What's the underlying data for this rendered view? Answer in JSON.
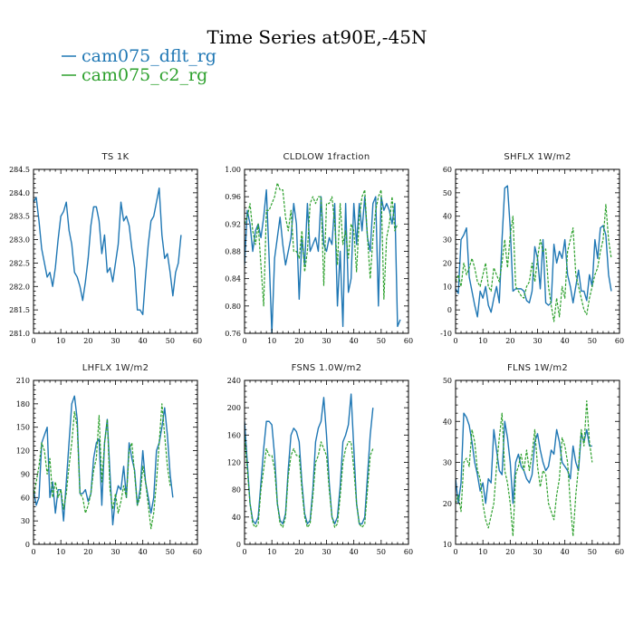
{
  "title": "Time Series at90E,-45N",
  "legend": [
    {
      "label": "cam075_dflt_rg",
      "color": "#1f77b4"
    },
    {
      "label": "cam075_c2_rg",
      "color": "#2ca02c"
    }
  ],
  "chart_data": [
    {
      "type": "line",
      "title": "TS   1K",
      "xlim": [
        0,
        60
      ],
      "ylim": [
        281.0,
        284.5
      ],
      "xticks": [
        0,
        10,
        20,
        30,
        40,
        50,
        60
      ],
      "yticks": [
        281.0,
        281.5,
        282.0,
        282.5,
        283.0,
        283.5,
        284.0,
        284.5
      ],
      "ytick_labels": [
        "281.0",
        "281.5",
        "282.0",
        "282.5",
        "283.0",
        "283.5",
        "284.0",
        "284.5"
      ],
      "series": [
        {
          "name": "cam075_dflt_rg",
          "color": "#1f77b4",
          "dashed": false,
          "values": [
            283.8,
            283.9,
            283.4,
            282.8,
            282.5,
            282.2,
            282.3,
            282.0,
            282.4,
            283.0,
            283.5,
            283.6,
            283.8,
            283.2,
            282.9,
            282.3,
            282.2,
            282.0,
            281.7,
            282.1,
            282.6,
            283.3,
            283.7,
            283.7,
            283.4,
            282.7,
            283.1,
            282.3,
            282.4,
            282.1,
            282.5,
            282.9,
            283.8,
            283.4,
            283.5,
            283.3,
            282.8,
            282.4,
            281.5,
            281.5,
            281.4,
            282.2,
            282.9,
            283.4,
            283.5,
            283.8,
            284.1,
            283.1,
            282.6,
            282.7,
            282.3,
            281.8,
            282.3,
            282.5,
            283.1
          ]
        }
      ]
    },
    {
      "type": "line",
      "title": "CLDLOW   1fraction",
      "xlim": [
        0,
        60
      ],
      "ylim": [
        0.76,
        1.0
      ],
      "xticks": [
        0,
        10,
        20,
        30,
        40,
        50,
        60
      ],
      "yticks": [
        0.76,
        0.8,
        0.84,
        0.88,
        0.92,
        0.96,
        1.0
      ],
      "ytick_labels": [
        "0.76",
        "0.80",
        "0.84",
        "0.88",
        "0.92",
        "0.96",
        "1.00"
      ],
      "series": [
        {
          "name": "cam075_dflt_rg",
          "color": "#1f77b4",
          "dashed": false,
          "values": [
            0.86,
            0.94,
            0.92,
            0.88,
            0.91,
            0.92,
            0.9,
            0.93,
            0.97,
            0.87,
            0.76,
            0.87,
            0.9,
            0.93,
            0.89,
            0.86,
            0.88,
            0.9,
            0.95,
            0.92,
            0.81,
            0.9,
            0.86,
            0.95,
            0.88,
            0.89,
            0.9,
            0.88,
            0.96,
            0.89,
            0.88,
            0.9,
            0.89,
            0.95,
            0.8,
            0.88,
            0.77,
            0.95,
            0.82,
            0.84,
            0.95,
            0.89,
            0.95,
            0.91,
            0.96,
            0.9,
            0.88,
            0.95,
            0.96,
            0.8,
            0.96,
            0.94,
            0.95,
            0.94,
            0.92,
            0.95,
            0.77,
            0.78
          ]
        },
        {
          "name": "cam075_c2_rg",
          "color": "#2ca02c",
          "dashed": true,
          "values": [
            0.92,
            0.93,
            0.95,
            0.91,
            0.89,
            0.92,
            0.86,
            0.8,
            0.94,
            0.94,
            0.95,
            0.96,
            0.98,
            0.97,
            0.97,
            0.93,
            0.91,
            0.94,
            0.88,
            0.88,
            0.87,
            0.91,
            0.85,
            0.88,
            0.95,
            0.96,
            0.95,
            0.96,
            0.96,
            0.83,
            0.95,
            0.95,
            0.96,
            0.92,
            0.86,
            0.95,
            0.89,
            0.91,
            0.87,
            0.92,
            0.91,
            0.85,
            0.93,
            0.96,
            0.97,
            0.9,
            0.84,
            0.9,
            0.94,
            0.96,
            0.97,
            0.81,
            0.9,
            0.92,
            0.96,
            0.91,
            0.92
          ]
        }
      ]
    },
    {
      "type": "line",
      "title": "SHFLX   1W/m2",
      "xlim": [
        0,
        60
      ],
      "ylim": [
        -10,
        60
      ],
      "xticks": [
        0,
        10,
        20,
        30,
        40,
        50,
        60
      ],
      "yticks": [
        -10,
        0,
        10,
        20,
        30,
        40,
        50,
        60
      ],
      "ytick_labels": [
        "-10",
        "0",
        "10",
        "20",
        "30",
        "40",
        "50",
        "60"
      ],
      "series": [
        {
          "name": "cam075_dflt_rg",
          "color": "#1f77b4",
          "dashed": false,
          "values": [
            9,
            7,
            30,
            32,
            35,
            14,
            8,
            2,
            -3,
            8,
            5,
            10,
            2,
            -1,
            5,
            10,
            3,
            30,
            52,
            53,
            35,
            8,
            9,
            9,
            9,
            8,
            4,
            3,
            8,
            27,
            22,
            9,
            30,
            3,
            2,
            3,
            28,
            20,
            25,
            22,
            30,
            15,
            10,
            3,
            10,
            17,
            8,
            8,
            4,
            15,
            10,
            30,
            22,
            35,
            36,
            32,
            15,
            8
          ]
        },
        {
          "name": "cam075_c2_rg",
          "color": "#2ca02c",
          "dashed": true,
          "values": [
            12,
            15,
            10,
            20,
            15,
            18,
            22,
            18,
            12,
            10,
            15,
            20,
            10,
            8,
            18,
            15,
            12,
            20,
            30,
            18,
            32,
            40,
            10,
            8,
            6,
            5,
            10,
            12,
            20,
            12,
            22,
            30,
            25,
            26,
            10,
            2,
            -5,
            5,
            -3,
            10,
            5,
            25,
            30,
            35,
            15,
            10,
            5,
            0,
            -2,
            5,
            10,
            15,
            18,
            25,
            30,
            45,
            30,
            22
          ]
        }
      ]
    },
    {
      "type": "line",
      "title": "LHFLX   1W/m2",
      "xlim": [
        0,
        60
      ],
      "ylim": [
        0,
        210
      ],
      "xticks": [
        0,
        10,
        20,
        30,
        40,
        50,
        60
      ],
      "yticks": [
        0,
        30,
        60,
        90,
        120,
        150,
        180,
        210
      ],
      "ytick_labels": [
        "0",
        "30",
        "60",
        "90",
        "120",
        "150",
        "180",
        "210"
      ],
      "series": [
        {
          "name": "cam075_dflt_rg",
          "color": "#1f77b4",
          "dashed": false,
          "values": [
            70,
            50,
            60,
            130,
            140,
            150,
            60,
            80,
            40,
            70,
            70,
            30,
            80,
            130,
            180,
            190,
            160,
            65,
            65,
            70,
            55,
            65,
            110,
            130,
            135,
            50,
            130,
            160,
            90,
            25,
            60,
            75,
            70,
            100,
            60,
            130,
            110,
            95,
            50,
            70,
            120,
            80,
            60,
            40,
            60,
            120,
            130,
            150,
            175,
            140,
            90,
            60
          ]
        },
        {
          "name": "cam075_c2_rg",
          "color": "#2ca02c",
          "dashed": true,
          "values": [
            60,
            80,
            100,
            130,
            120,
            90,
            110,
            60,
            80,
            60,
            70,
            45,
            65,
            100,
            130,
            170,
            150,
            65,
            60,
            40,
            50,
            65,
            95,
            110,
            165,
            80,
            130,
            160,
            70,
            45,
            65,
            40,
            55,
            75,
            60,
            120,
            130,
            90,
            50,
            60,
            100,
            80,
            50,
            20,
            40,
            80,
            130,
            180,
            140,
            100,
            75
          ]
        }
      ]
    },
    {
      "type": "line",
      "title": "FSNS   1.0W/m2",
      "xlim": [
        0,
        60
      ],
      "ylim": [
        0,
        240
      ],
      "xticks": [
        0,
        10,
        20,
        30,
        40,
        50,
        60
      ],
      "yticks": [
        0,
        40,
        80,
        120,
        160,
        200,
        240
      ],
      "ytick_labels": [
        "0",
        "40",
        "80",
        "120",
        "160",
        "200",
        "240"
      ],
      "series": [
        {
          "name": "cam075_dflt_rg",
          "color": "#1f77b4",
          "dashed": false,
          "values": [
            180,
            120,
            60,
            35,
            30,
            40,
            90,
            140,
            180,
            180,
            175,
            130,
            60,
            35,
            30,
            45,
            110,
            160,
            170,
            165,
            150,
            90,
            45,
            30,
            35,
            80,
            150,
            170,
            180,
            215,
            160,
            90,
            40,
            30,
            40,
            85,
            150,
            160,
            175,
            220,
            140,
            60,
            30,
            30,
            40,
            100,
            160,
            200
          ]
        },
        {
          "name": "cam075_c2_rg",
          "color": "#2ca02c",
          "dashed": true,
          "values": [
            160,
            110,
            60,
            30,
            25,
            30,
            80,
            110,
            140,
            130,
            130,
            110,
            60,
            30,
            25,
            40,
            100,
            130,
            140,
            130,
            130,
            80,
            40,
            25,
            30,
            70,
            120,
            130,
            150,
            140,
            130,
            80,
            40,
            25,
            30,
            70,
            120,
            140,
            150,
            150,
            110,
            60,
            30,
            25,
            30,
            80,
            130,
            140
          ]
        }
      ]
    },
    {
      "type": "line",
      "title": "FLNS   1W/m2",
      "xlim": [
        0,
        60
      ],
      "ylim": [
        10,
        50
      ],
      "xticks": [
        0,
        10,
        20,
        30,
        40,
        50,
        60
      ],
      "yticks": [
        10,
        20,
        30,
        40,
        50
      ],
      "ytick_labels": [
        "10",
        "20",
        "30",
        "40",
        "50"
      ],
      "series": [
        {
          "name": "cam075_dflt_rg",
          "color": "#1f77b4",
          "dashed": false,
          "values": [
            26,
            20,
            25,
            42,
            41,
            39,
            35,
            30,
            27,
            23,
            25,
            20,
            26,
            25,
            38,
            33,
            28,
            27,
            40,
            36,
            30,
            20,
            30,
            32,
            29,
            28,
            26,
            25,
            27,
            35,
            37,
            33,
            30,
            28,
            29,
            33,
            32,
            38,
            35,
            30,
            29,
            28,
            26,
            34,
            30,
            28,
            37,
            35,
            38,
            34,
            34
          ]
        },
        {
          "name": "cam075_c2_rg",
          "color": "#2ca02c",
          "dashed": true,
          "values": [
            20,
            22,
            18,
            30,
            31,
            29,
            38,
            35,
            28,
            26,
            20,
            16,
            14,
            17,
            20,
            29,
            36,
            42,
            28,
            25,
            20,
            12,
            27,
            29,
            32,
            28,
            33,
            28,
            32,
            38,
            29,
            24,
            28,
            27,
            20,
            18,
            16,
            22,
            26,
            36,
            34,
            30,
            20,
            12,
            22,
            29,
            38,
            34,
            45,
            35,
            30
          ]
        }
      ]
    }
  ]
}
